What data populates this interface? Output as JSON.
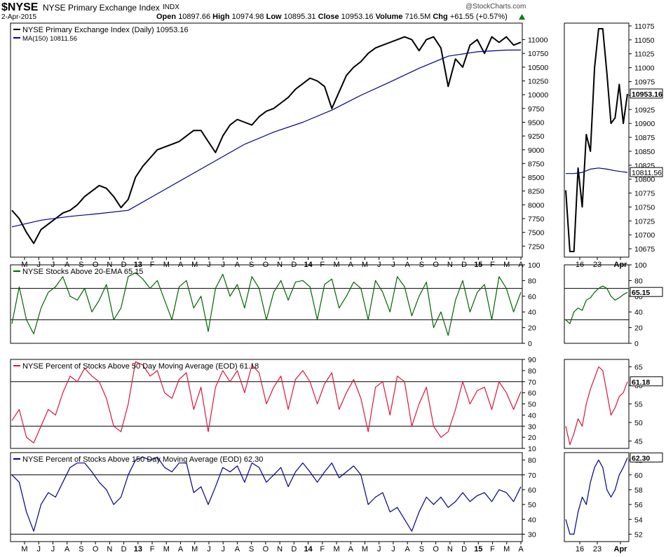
{
  "header": {
    "symbol": "$NYSE",
    "name": "NYSE Primary Exchange Index",
    "exchange": "INDX",
    "date": "2-Apr-2015",
    "open_label": "Open",
    "open": "10897.66",
    "high_label": "High",
    "high": "10974.98",
    "low_label": "Low",
    "low": "10895.31",
    "close_label": "Close",
    "close": "10953.16",
    "volume_label": "Volume",
    "volume": "716.5M",
    "chg_label": "Chg",
    "chg": "+61.55 (+0.57%)",
    "watermark": "@StockCharts.com"
  },
  "colors": {
    "price": "#000000",
    "ma": "#00008b",
    "ema20": "#006400",
    "pct50": "#dc143c",
    "pct150": "#00008b",
    "frame": "#000000"
  },
  "chart_data": [
    {
      "type": "line",
      "panel": "price",
      "legend": [
        "NYSE Primary Exchange Index (Daily) 10953.16",
        "MA(150) 10811.56"
      ],
      "x_ticks": [
        "M",
        "J",
        "J",
        "A",
        "S",
        "O",
        "N",
        "D",
        "13",
        "F",
        "M",
        "A",
        "M",
        "J",
        "J",
        "A",
        "S",
        "O",
        "N",
        "D",
        "14",
        "F",
        "M",
        "A",
        "M",
        "J",
        "J",
        "A",
        "S",
        "O",
        "N",
        "D",
        "15",
        "F",
        "M",
        "A"
      ],
      "ylim": [
        7050,
        11300
      ],
      "y_ticks": [
        7250,
        7500,
        7750,
        8000,
        8250,
        8500,
        8750,
        9000,
        9250,
        9500,
        9750,
        10000,
        10250,
        10500,
        10750,
        11000
      ],
      "series": [
        {
          "name": "NYSE Primary Exchange Index (Daily)",
          "color": "#000000",
          "x": [
            0,
            0.5,
            1,
            1.5,
            2,
            2.5,
            3,
            3.5,
            4,
            4.5,
            5,
            5.5,
            6,
            6.5,
            7,
            7.5,
            8,
            8.5,
            9,
            9.5,
            10,
            10.5,
            11,
            11.5,
            12,
            12.5,
            13,
            13.5,
            14,
            14.5,
            15,
            15.5,
            16,
            16.5,
            17,
            17.5,
            18,
            18.5,
            19,
            19.5,
            20,
            20.5,
            21,
            21.5,
            22,
            22.5,
            23,
            23.5,
            24,
            24.5,
            25,
            25.5,
            26,
            26.5,
            27,
            27.5,
            28,
            28.5,
            29,
            29.5,
            30,
            30.5,
            31,
            31.5,
            32,
            32.5,
            33,
            33.5,
            34,
            34.5,
            35
          ],
          "values": [
            7900,
            7750,
            7500,
            7300,
            7550,
            7650,
            7750,
            7850,
            7900,
            8000,
            8150,
            8250,
            8350,
            8300,
            8150,
            7950,
            8100,
            8500,
            8700,
            8850,
            9000,
            9050,
            9100,
            9150,
            9250,
            9350,
            9350,
            9150,
            8950,
            9250,
            9450,
            9550,
            9500,
            9450,
            9600,
            9700,
            9750,
            9850,
            9950,
            10100,
            10200,
            10300,
            10250,
            10150,
            9750,
            10050,
            10350,
            10500,
            10600,
            10750,
            10850,
            10900,
            10950,
            11000,
            11050,
            11000,
            10800,
            11000,
            11050,
            10850,
            10150,
            10650,
            10500,
            10900,
            11000,
            10750,
            11050,
            10950,
            11050,
            10900,
            10953
          ]
        },
        {
          "name": "MA(150)",
          "color": "#00008b",
          "x": [
            0,
            2,
            4,
            6,
            8,
            10,
            12,
            14,
            16,
            18,
            20,
            22,
            24,
            26,
            28,
            30,
            32,
            34,
            35
          ],
          "values": [
            7600,
            7720,
            7790,
            7840,
            7900,
            8200,
            8500,
            8800,
            9100,
            9320,
            9500,
            9720,
            9990,
            10230,
            10480,
            10700,
            10780,
            10810,
            10812
          ]
        }
      ]
    },
    {
      "type": "line",
      "panel": "price-zoom",
      "x_ticks": [
        "16",
        "23",
        "Apr"
      ],
      "ylim": [
        10660,
        11080
      ],
      "y_ticks": [
        10675,
        10700,
        10725,
        10750,
        10775,
        10800,
        10825,
        10850,
        10875,
        10900,
        10925,
        10950,
        10975,
        11000,
        11025,
        11050,
        11075
      ],
      "last_value_label": "10953.16",
      "ma_value_label": "10811.56",
      "series": [
        {
          "name": "NYSE Primary Exchange Index (Daily)",
          "color": "#000000",
          "x": [
            0,
            1,
            2,
            3,
            4,
            5,
            6,
            7,
            8,
            9,
            10,
            11,
            12,
            13,
            14,
            15
          ],
          "values": [
            10780,
            10670,
            10670,
            10820,
            10750,
            10880,
            10850,
            11000,
            11070,
            11070,
            10990,
            10900,
            10910,
            10970,
            10900,
            10953
          ]
        },
        {
          "name": "MA(150)",
          "color": "#00008b",
          "x": [
            0,
            2,
            4,
            6,
            8,
            10,
            12,
            15
          ],
          "values": [
            10810,
            10810,
            10812,
            10818,
            10820,
            10818,
            10815,
            10812
          ]
        }
      ]
    },
    {
      "type": "line",
      "panel": "ema20",
      "legend": [
        "NYSE Stocks Above 20-EMA 65.15"
      ],
      "ylim": [
        0,
        100
      ],
      "y_ticks": [
        0,
        20,
        40,
        60,
        80,
        100
      ],
      "hlines": [
        30,
        70
      ],
      "series": [
        {
          "name": "NYSE Stocks Above 20-EMA",
          "color": "#006400",
          "x": [
            0,
            0.5,
            1,
            1.5,
            2,
            2.5,
            3,
            3.5,
            4,
            4.5,
            5,
            5.5,
            6,
            6.5,
            7,
            7.5,
            8,
            8.5,
            9,
            9.5,
            10,
            10.5,
            11,
            11.5,
            12,
            12.5,
            13,
            13.5,
            14,
            14.5,
            15,
            15.5,
            16,
            16.5,
            17,
            17.5,
            18,
            18.5,
            19,
            19.5,
            20,
            20.5,
            21,
            21.5,
            22,
            22.5,
            23,
            23.5,
            24,
            24.5,
            25,
            25.5,
            26,
            26.5,
            27,
            27.5,
            28,
            28.5,
            29,
            29.5,
            30,
            30.5,
            31,
            31.5,
            32,
            32.5,
            33,
            33.5,
            34,
            34.5,
            35
          ],
          "values": [
            25,
            72,
            30,
            12,
            45,
            65,
            72,
            85,
            60,
            55,
            70,
            40,
            55,
            75,
            30,
            45,
            85,
            90,
            82,
            70,
            80,
            55,
            30,
            72,
            80,
            45,
            60,
            15,
            70,
            88,
            60,
            75,
            45,
            85,
            70,
            30,
            65,
            80,
            55,
            78,
            80,
            72,
            30,
            75,
            82,
            45,
            60,
            78,
            70,
            30,
            80,
            65,
            40,
            85,
            72,
            35,
            60,
            78,
            20,
            40,
            10,
            55,
            80,
            40,
            65,
            75,
            30,
            85,
            70,
            40,
            65
          ]
        }
      ]
    },
    {
      "type": "line",
      "panel": "ema20-zoom",
      "ylim": [
        0,
        100
      ],
      "y_ticks": [
        0,
        20,
        40,
        60,
        80,
        100
      ],
      "hlines": [
        30,
        70
      ],
      "last_value_label": "65.15",
      "series": [
        {
          "name": "NYSE Stocks Above 20-EMA",
          "color": "#006400",
          "x": [
            0,
            1,
            2,
            3,
            4,
            5,
            6,
            7,
            8,
            9,
            10,
            11,
            12,
            13,
            14,
            15
          ],
          "values": [
            30,
            25,
            40,
            45,
            42,
            55,
            58,
            65,
            70,
            73,
            70,
            60,
            55,
            58,
            62,
            65
          ]
        }
      ]
    },
    {
      "type": "line",
      "panel": "pct50",
      "legend": [
        "NYSE Percent of Stocks Above 50 Day Moving Average (EOD) 61.18"
      ],
      "ylim": [
        10,
        90
      ],
      "y_ticks": [
        10,
        20,
        30,
        40,
        50,
        60,
        70,
        80,
        90
      ],
      "hlines": [
        30,
        70
      ],
      "series": [
        {
          "name": "NYSE Percent of Stocks Above 50 Day Moving Average (EOD)",
          "color": "#dc143c",
          "x": [
            0,
            0.5,
            1,
            1.5,
            2,
            2.5,
            3,
            3.5,
            4,
            4.5,
            5,
            5.5,
            6,
            6.5,
            7,
            7.5,
            8,
            8.5,
            9,
            9.5,
            10,
            10.5,
            11,
            11.5,
            12,
            12.5,
            13,
            13.5,
            14,
            14.5,
            15,
            15.5,
            16,
            16.5,
            17,
            17.5,
            18,
            18.5,
            19,
            19.5,
            20,
            20.5,
            21,
            21.5,
            22,
            22.5,
            23,
            23.5,
            24,
            24.5,
            25,
            25.5,
            26,
            26.5,
            27,
            27.5,
            28,
            28.5,
            29,
            29.5,
            30,
            30.5,
            31,
            31.5,
            32,
            32.5,
            33,
            33.5,
            34,
            34.5,
            35
          ],
          "values": [
            35,
            45,
            20,
            15,
            30,
            45,
            40,
            60,
            75,
            70,
            82,
            75,
            70,
            55,
            30,
            25,
            50,
            88,
            85,
            75,
            80,
            60,
            55,
            72,
            78,
            45,
            65,
            25,
            65,
            80,
            70,
            80,
            60,
            85,
            78,
            50,
            65,
            75,
            45,
            72,
            80,
            70,
            50,
            68,
            78,
            45,
            60,
            72,
            55,
            25,
            65,
            70,
            40,
            75,
            70,
            30,
            50,
            65,
            30,
            20,
            25,
            45,
            70,
            50,
            62,
            65,
            45,
            70,
            60,
            45,
            61
          ]
        }
      ]
    },
    {
      "type": "line",
      "panel": "pct50-zoom",
      "ylim": [
        43,
        67
      ],
      "y_ticks": [
        45,
        50,
        55,
        60,
        65
      ],
      "last_value_label": "61.18",
      "series": [
        {
          "name": "NYSE Percent of Stocks Above 50 Day Moving Average (EOD)",
          "color": "#dc143c",
          "x": [
            0,
            1,
            2,
            3,
            4,
            5,
            6,
            7,
            8,
            9,
            10,
            11,
            12,
            13,
            14,
            15
          ],
          "values": [
            49,
            44,
            47,
            51,
            49,
            55,
            59,
            62,
            65,
            64,
            58,
            52,
            54,
            57,
            58,
            61
          ]
        }
      ]
    },
    {
      "type": "line",
      "panel": "pct150",
      "legend": [
        "NYSE Percent of Stocks Above 150 Day Moving Average (EOD) 62.30"
      ],
      "ylim": [
        25,
        85
      ],
      "y_ticks": [
        30,
        40,
        50,
        60,
        70,
        80
      ],
      "hlines": [
        30,
        70
      ],
      "series": [
        {
          "name": "NYSE Percent of Stocks Above 150 Day Moving Average (EOD)",
          "color": "#00008b",
          "x": [
            0,
            0.5,
            1,
            1.5,
            2,
            2.5,
            3,
            3.5,
            4,
            4.5,
            5,
            5.5,
            6,
            6.5,
            7,
            7.5,
            8,
            8.5,
            9,
            9.5,
            10,
            10.5,
            11,
            11.5,
            12,
            12.5,
            13,
            13.5,
            14,
            14.5,
            15,
            15.5,
            16,
            16.5,
            17,
            17.5,
            18,
            18.5,
            19,
            19.5,
            20,
            20.5,
            21,
            21.5,
            22,
            22.5,
            23,
            23.5,
            24,
            24.5,
            25,
            25.5,
            26,
            26.5,
            27,
            27.5,
            28,
            28.5,
            29,
            29.5,
            30,
            30.5,
            31,
            31.5,
            32,
            32.5,
            33,
            33.5,
            34,
            34.5,
            35
          ],
          "values": [
            70,
            65,
            45,
            32,
            50,
            58,
            55,
            65,
            75,
            78,
            78,
            72,
            65,
            60,
            50,
            55,
            70,
            80,
            82,
            80,
            82,
            75,
            72,
            78,
            78,
            58,
            62,
            50,
            62,
            75,
            72,
            76,
            65,
            78,
            75,
            65,
            70,
            75,
            62,
            72,
            78,
            72,
            65,
            72,
            78,
            68,
            72,
            76,
            70,
            50,
            55,
            58,
            45,
            48,
            40,
            32,
            45,
            55,
            50,
            55,
            48,
            52,
            58,
            52,
            56,
            58,
            52,
            60,
            58,
            52,
            62
          ]
        }
      ]
    },
    {
      "type": "line",
      "panel": "pct150-zoom",
      "x_ticks": [
        "16",
        "23",
        "Apr"
      ],
      "ylim": [
        51,
        63
      ],
      "y_ticks": [
        52,
        54,
        56,
        58,
        60,
        62
      ],
      "last_value_label": "62.30",
      "series": [
        {
          "name": "NYSE Percent of Stocks Above 150 Day Moving Average (EOD)",
          "color": "#00008b",
          "x": [
            0,
            1,
            2,
            3,
            4,
            5,
            6,
            7,
            8,
            9,
            10,
            11,
            12,
            13,
            14,
            15
          ],
          "values": [
            54,
            52,
            52,
            55,
            57,
            56,
            59,
            61,
            62,
            61,
            58,
            57,
            58,
            60,
            61,
            62.3
          ]
        }
      ]
    }
  ]
}
